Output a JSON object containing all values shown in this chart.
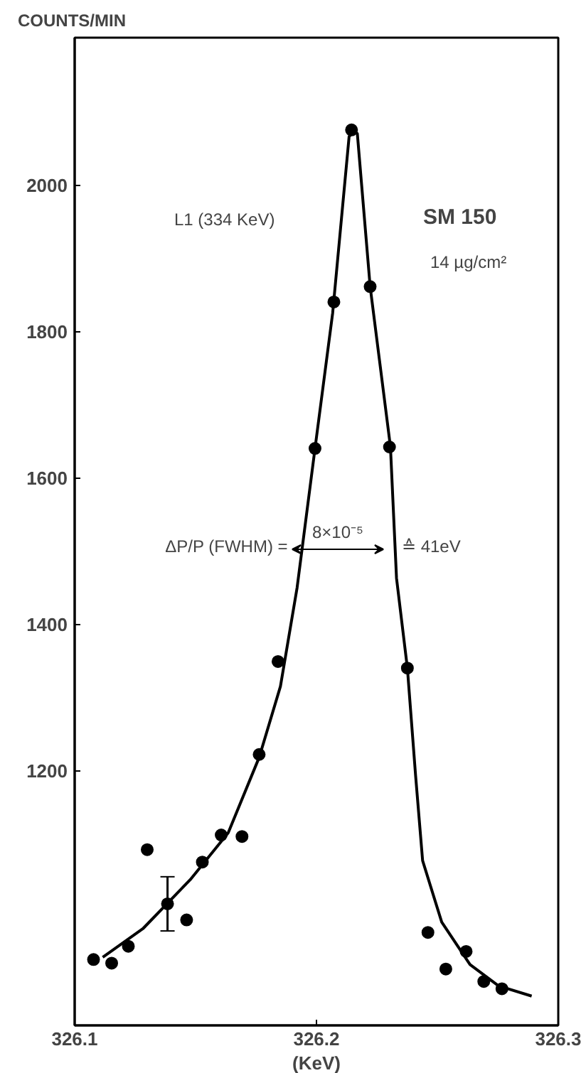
{
  "chart_data": {
    "type": "scatter",
    "ylabel": "COUNTS/MIN",
    "xlabel": "(KeV)",
    "xlim": [
      326.1,
      326.3
    ],
    "xticks": [
      326.1,
      326.2,
      326.3
    ],
    "ylim": [
      853,
      2202
    ],
    "yticks": [
      1200,
      1400,
      1600,
      1800,
      2000
    ],
    "grid": false,
    "annotations": [
      "L1 (334 KeV)",
      "SM 150",
      "14 µg/cm²",
      "ΔP/P (FWHM) =",
      "8×10⁻⁵",
      "≙ 41eV"
    ],
    "series": [
      {
        "marker": "circle",
        "color": "#000000",
        "x": [
          326.1078,
          326.1153,
          326.1222,
          326.13,
          326.1384,
          326.1463,
          326.1528,
          326.1606,
          326.1692,
          326.1763,
          326.1841,
          326.1994,
          326.2072,
          326.2145,
          326.2222,
          326.2302,
          326.2376,
          326.2461,
          326.2535,
          326.2619,
          326.2692,
          326.2767
        ],
        "values": [
          943,
          938,
          961,
          1093,
          1019,
          997,
          1076,
          1113,
          1111,
          1223,
          1350,
          1641,
          1841,
          2076,
          1862,
          1643,
          1341,
          980,
          930,
          954,
          913,
          903
        ],
        "errors": [
          null,
          null,
          null,
          null,
          37,
          null,
          null,
          null,
          null,
          null,
          null,
          null,
          null,
          null,
          null,
          null,
          null,
          null,
          null,
          null,
          null,
          null
        ]
      },
      {
        "type": "line",
        "color": "#000000",
        "line_style": "solid",
        "x": [
          326.1116,
          326.1282,
          326.1478,
          326.1635,
          326.1763,
          326.1851,
          326.192,
          326.1994,
          326.2067,
          326.2135,
          326.2155,
          326.2169,
          326.2222,
          326.2306,
          326.2331,
          326.2376,
          326.241,
          326.2439,
          326.2518,
          326.2635,
          326.2753,
          326.289
        ],
        "values": [
          946,
          985,
          1052,
          1116,
          1219,
          1316,
          1451,
          1641,
          1826,
          2067,
          2074,
          2071,
          1862,
          1643,
          1464,
          1341,
          1194,
          1078,
          994,
          936,
          907,
          893
        ]
      }
    ]
  }
}
